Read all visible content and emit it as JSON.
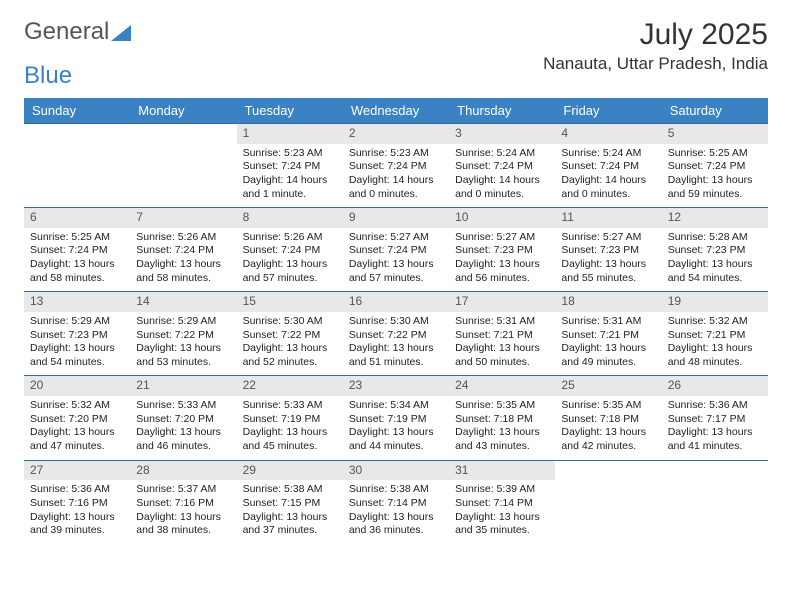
{
  "logo": {
    "text1": "General",
    "text2": "Blue"
  },
  "title": "July 2025",
  "location": "Nanauta, Uttar Pradesh, India",
  "colors": {
    "header_bg": "#3b82c4",
    "header_text": "#ffffff",
    "daynum_bg": "#e7e8e9",
    "rule": "#3b6a90",
    "text": "#222222",
    "logo_gray": "#555555"
  },
  "day_names": [
    "Sunday",
    "Monday",
    "Tuesday",
    "Wednesday",
    "Thursday",
    "Friday",
    "Saturday"
  ],
  "weeks": [
    [
      null,
      null,
      {
        "n": "1",
        "sunrise": "5:23 AM",
        "sunset": "7:24 PM",
        "daylight": "14 hours and 1 minute."
      },
      {
        "n": "2",
        "sunrise": "5:23 AM",
        "sunset": "7:24 PM",
        "daylight": "14 hours and 0 minutes."
      },
      {
        "n": "3",
        "sunrise": "5:24 AM",
        "sunset": "7:24 PM",
        "daylight": "14 hours and 0 minutes."
      },
      {
        "n": "4",
        "sunrise": "5:24 AM",
        "sunset": "7:24 PM",
        "daylight": "14 hours and 0 minutes."
      },
      {
        "n": "5",
        "sunrise": "5:25 AM",
        "sunset": "7:24 PM",
        "daylight": "13 hours and 59 minutes."
      }
    ],
    [
      {
        "n": "6",
        "sunrise": "5:25 AM",
        "sunset": "7:24 PM",
        "daylight": "13 hours and 58 minutes."
      },
      {
        "n": "7",
        "sunrise": "5:26 AM",
        "sunset": "7:24 PM",
        "daylight": "13 hours and 58 minutes."
      },
      {
        "n": "8",
        "sunrise": "5:26 AM",
        "sunset": "7:24 PM",
        "daylight": "13 hours and 57 minutes."
      },
      {
        "n": "9",
        "sunrise": "5:27 AM",
        "sunset": "7:24 PM",
        "daylight": "13 hours and 57 minutes."
      },
      {
        "n": "10",
        "sunrise": "5:27 AM",
        "sunset": "7:23 PM",
        "daylight": "13 hours and 56 minutes."
      },
      {
        "n": "11",
        "sunrise": "5:27 AM",
        "sunset": "7:23 PM",
        "daylight": "13 hours and 55 minutes."
      },
      {
        "n": "12",
        "sunrise": "5:28 AM",
        "sunset": "7:23 PM",
        "daylight": "13 hours and 54 minutes."
      }
    ],
    [
      {
        "n": "13",
        "sunrise": "5:29 AM",
        "sunset": "7:23 PM",
        "daylight": "13 hours and 54 minutes."
      },
      {
        "n": "14",
        "sunrise": "5:29 AM",
        "sunset": "7:22 PM",
        "daylight": "13 hours and 53 minutes."
      },
      {
        "n": "15",
        "sunrise": "5:30 AM",
        "sunset": "7:22 PM",
        "daylight": "13 hours and 52 minutes."
      },
      {
        "n": "16",
        "sunrise": "5:30 AM",
        "sunset": "7:22 PM",
        "daylight": "13 hours and 51 minutes."
      },
      {
        "n": "17",
        "sunrise": "5:31 AM",
        "sunset": "7:21 PM",
        "daylight": "13 hours and 50 minutes."
      },
      {
        "n": "18",
        "sunrise": "5:31 AM",
        "sunset": "7:21 PM",
        "daylight": "13 hours and 49 minutes."
      },
      {
        "n": "19",
        "sunrise": "5:32 AM",
        "sunset": "7:21 PM",
        "daylight": "13 hours and 48 minutes."
      }
    ],
    [
      {
        "n": "20",
        "sunrise": "5:32 AM",
        "sunset": "7:20 PM",
        "daylight": "13 hours and 47 minutes."
      },
      {
        "n": "21",
        "sunrise": "5:33 AM",
        "sunset": "7:20 PM",
        "daylight": "13 hours and 46 minutes."
      },
      {
        "n": "22",
        "sunrise": "5:33 AM",
        "sunset": "7:19 PM",
        "daylight": "13 hours and 45 minutes."
      },
      {
        "n": "23",
        "sunrise": "5:34 AM",
        "sunset": "7:19 PM",
        "daylight": "13 hours and 44 minutes."
      },
      {
        "n": "24",
        "sunrise": "5:35 AM",
        "sunset": "7:18 PM",
        "daylight": "13 hours and 43 minutes."
      },
      {
        "n": "25",
        "sunrise": "5:35 AM",
        "sunset": "7:18 PM",
        "daylight": "13 hours and 42 minutes."
      },
      {
        "n": "26",
        "sunrise": "5:36 AM",
        "sunset": "7:17 PM",
        "daylight": "13 hours and 41 minutes."
      }
    ],
    [
      {
        "n": "27",
        "sunrise": "5:36 AM",
        "sunset": "7:16 PM",
        "daylight": "13 hours and 39 minutes."
      },
      {
        "n": "28",
        "sunrise": "5:37 AM",
        "sunset": "7:16 PM",
        "daylight": "13 hours and 38 minutes."
      },
      {
        "n": "29",
        "sunrise": "5:38 AM",
        "sunset": "7:15 PM",
        "daylight": "13 hours and 37 minutes."
      },
      {
        "n": "30",
        "sunrise": "5:38 AM",
        "sunset": "7:14 PM",
        "daylight": "13 hours and 36 minutes."
      },
      {
        "n": "31",
        "sunrise": "5:39 AM",
        "sunset": "7:14 PM",
        "daylight": "13 hours and 35 minutes."
      },
      null,
      null
    ]
  ],
  "labels": {
    "sunrise": "Sunrise:",
    "sunset": "Sunset:",
    "daylight": "Daylight:"
  }
}
